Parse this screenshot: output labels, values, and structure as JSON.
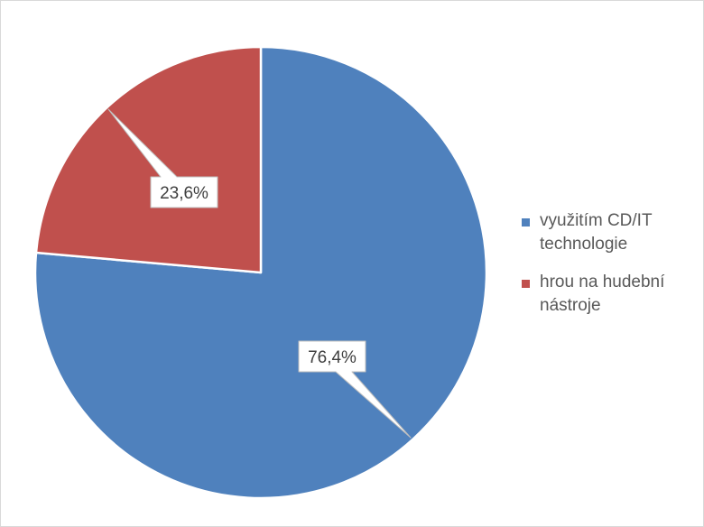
{
  "chart_data": {
    "type": "pie",
    "title": "",
    "categories": [
      "využitím CD/IT technologie",
      "hrou na hudební nástroje"
    ],
    "values": [
      76.4,
      23.6
    ],
    "data_labels": [
      "76,4%",
      "23,6%"
    ],
    "colors": [
      "#4f81bd",
      "#c0504d"
    ],
    "start_angle_deg": 0,
    "direction": "clockwise",
    "legend": {
      "position": "right",
      "items": [
        {
          "label_line1": "využitím CD/IT",
          "label_line2": "technologie",
          "color": "#4f81bd"
        },
        {
          "label_line1": "hrou na hudební",
          "label_line2": "nástroje",
          "color": "#c0504d"
        }
      ]
    }
  }
}
